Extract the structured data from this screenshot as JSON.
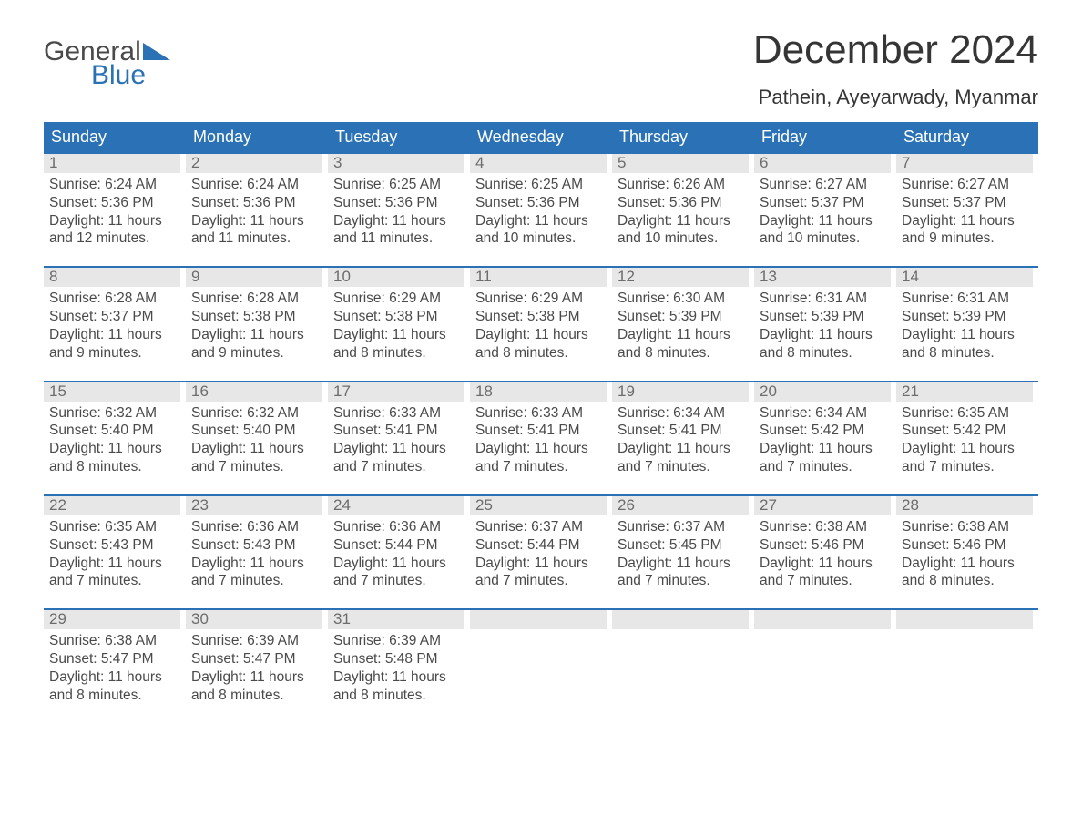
{
  "logo": {
    "line1": "General",
    "line2": "Blue",
    "tri_color": "#2a72b5"
  },
  "title": "December 2024",
  "location": "Pathein, Ayeyarwady, Myanmar",
  "colors": {
    "header_bg": "#2a72b5",
    "header_text": "#ffffff",
    "daynum_bg": "#e7e7e7",
    "daynum_text": "#6d6d6d",
    "body_text": "#4a4a4a",
    "week_border": "#2a72b5",
    "page_bg": "#ffffff"
  },
  "weekdays": [
    "Sunday",
    "Monday",
    "Tuesday",
    "Wednesday",
    "Thursday",
    "Friday",
    "Saturday"
  ],
  "weeks": [
    [
      {
        "n": "1",
        "sr": "6:24 AM",
        "ss": "5:36 PM",
        "dl": "11 hours and 12 minutes."
      },
      {
        "n": "2",
        "sr": "6:24 AM",
        "ss": "5:36 PM",
        "dl": "11 hours and 11 minutes."
      },
      {
        "n": "3",
        "sr": "6:25 AM",
        "ss": "5:36 PM",
        "dl": "11 hours and 11 minutes."
      },
      {
        "n": "4",
        "sr": "6:25 AM",
        "ss": "5:36 PM",
        "dl": "11 hours and 10 minutes."
      },
      {
        "n": "5",
        "sr": "6:26 AM",
        "ss": "5:36 PM",
        "dl": "11 hours and 10 minutes."
      },
      {
        "n": "6",
        "sr": "6:27 AM",
        "ss": "5:37 PM",
        "dl": "11 hours and 10 minutes."
      },
      {
        "n": "7",
        "sr": "6:27 AM",
        "ss": "5:37 PM",
        "dl": "11 hours and 9 minutes."
      }
    ],
    [
      {
        "n": "8",
        "sr": "6:28 AM",
        "ss": "5:37 PM",
        "dl": "11 hours and 9 minutes."
      },
      {
        "n": "9",
        "sr": "6:28 AM",
        "ss": "5:38 PM",
        "dl": "11 hours and 9 minutes."
      },
      {
        "n": "10",
        "sr": "6:29 AM",
        "ss": "5:38 PM",
        "dl": "11 hours and 8 minutes."
      },
      {
        "n": "11",
        "sr": "6:29 AM",
        "ss": "5:38 PM",
        "dl": "11 hours and 8 minutes."
      },
      {
        "n": "12",
        "sr": "6:30 AM",
        "ss": "5:39 PM",
        "dl": "11 hours and 8 minutes."
      },
      {
        "n": "13",
        "sr": "6:31 AM",
        "ss": "5:39 PM",
        "dl": "11 hours and 8 minutes."
      },
      {
        "n": "14",
        "sr": "6:31 AM",
        "ss": "5:39 PM",
        "dl": "11 hours and 8 minutes."
      }
    ],
    [
      {
        "n": "15",
        "sr": "6:32 AM",
        "ss": "5:40 PM",
        "dl": "11 hours and 8 minutes."
      },
      {
        "n": "16",
        "sr": "6:32 AM",
        "ss": "5:40 PM",
        "dl": "11 hours and 7 minutes."
      },
      {
        "n": "17",
        "sr": "6:33 AM",
        "ss": "5:41 PM",
        "dl": "11 hours and 7 minutes."
      },
      {
        "n": "18",
        "sr": "6:33 AM",
        "ss": "5:41 PM",
        "dl": "11 hours and 7 minutes."
      },
      {
        "n": "19",
        "sr": "6:34 AM",
        "ss": "5:41 PM",
        "dl": "11 hours and 7 minutes."
      },
      {
        "n": "20",
        "sr": "6:34 AM",
        "ss": "5:42 PM",
        "dl": "11 hours and 7 minutes."
      },
      {
        "n": "21",
        "sr": "6:35 AM",
        "ss": "5:42 PM",
        "dl": "11 hours and 7 minutes."
      }
    ],
    [
      {
        "n": "22",
        "sr": "6:35 AM",
        "ss": "5:43 PM",
        "dl": "11 hours and 7 minutes."
      },
      {
        "n": "23",
        "sr": "6:36 AM",
        "ss": "5:43 PM",
        "dl": "11 hours and 7 minutes."
      },
      {
        "n": "24",
        "sr": "6:36 AM",
        "ss": "5:44 PM",
        "dl": "11 hours and 7 minutes."
      },
      {
        "n": "25",
        "sr": "6:37 AM",
        "ss": "5:44 PM",
        "dl": "11 hours and 7 minutes."
      },
      {
        "n": "26",
        "sr": "6:37 AM",
        "ss": "5:45 PM",
        "dl": "11 hours and 7 minutes."
      },
      {
        "n": "27",
        "sr": "6:38 AM",
        "ss": "5:46 PM",
        "dl": "11 hours and 7 minutes."
      },
      {
        "n": "28",
        "sr": "6:38 AM",
        "ss": "5:46 PM",
        "dl": "11 hours and 8 minutes."
      }
    ],
    [
      {
        "n": "29",
        "sr": "6:38 AM",
        "ss": "5:47 PM",
        "dl": "11 hours and 8 minutes."
      },
      {
        "n": "30",
        "sr": "6:39 AM",
        "ss": "5:47 PM",
        "dl": "11 hours and 8 minutes."
      },
      {
        "n": "31",
        "sr": "6:39 AM",
        "ss": "5:48 PM",
        "dl": "11 hours and 8 minutes."
      },
      null,
      null,
      null,
      null
    ]
  ],
  "labels": {
    "sunrise": "Sunrise:",
    "sunset": "Sunset:",
    "daylight": "Daylight:"
  }
}
